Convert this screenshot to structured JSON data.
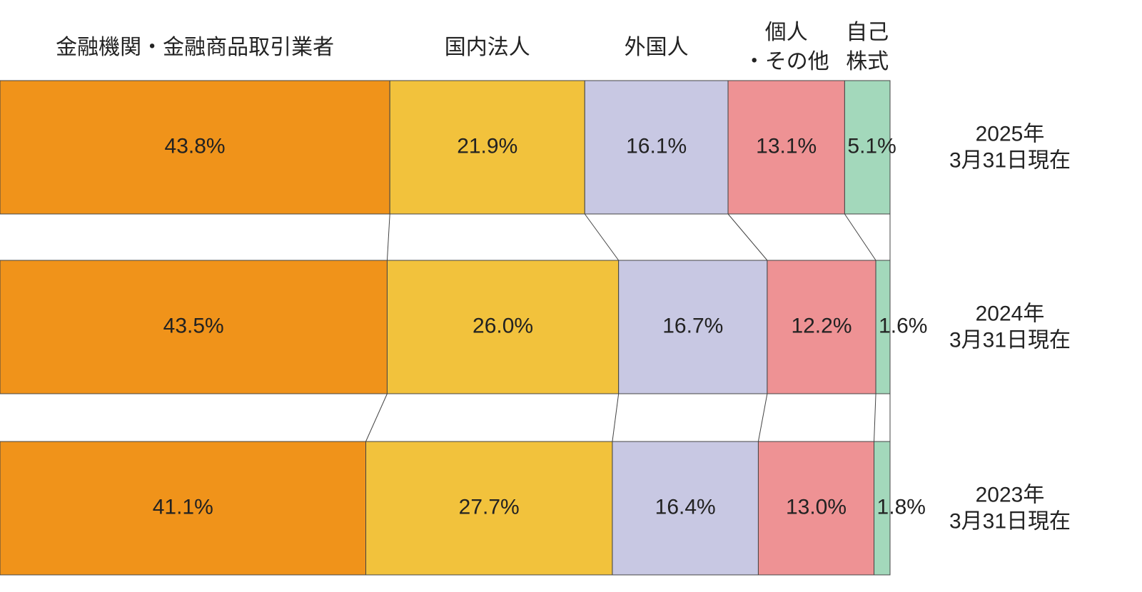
{
  "chart_data": {
    "type": "stacked-bar-horizontal-percent",
    "categories": [
      [
        "2025年",
        "3月31日現在"
      ],
      [
        "2024年",
        "3月31日現在"
      ],
      [
        "2023年",
        "3月31日現在"
      ]
    ],
    "series": [
      {
        "name": [
          "金融機関・金融商品取引業者"
        ],
        "color": "#f0931a",
        "values": [
          43.8,
          43.5,
          41.1
        ],
        "value_labels": [
          "43.8%",
          "43.5%",
          "41.1%"
        ]
      },
      {
        "name": [
          "国内法人"
        ],
        "color": "#f2c23c",
        "values": [
          21.9,
          26.0,
          27.7
        ],
        "value_labels": [
          "21.9%",
          "26.0%",
          "27.7%"
        ]
      },
      {
        "name": [
          "外国人"
        ],
        "color": "#c8c8e3",
        "values": [
          16.1,
          16.7,
          16.4
        ],
        "value_labels": [
          "16.1%",
          "16.7%",
          "16.4%"
        ]
      },
      {
        "name": [
          "個人",
          "・その他"
        ],
        "color": "#ee9294",
        "values": [
          13.1,
          12.2,
          13.0
        ],
        "value_labels": [
          "13.1%",
          "12.2%",
          "13.0%"
        ]
      },
      {
        "name": [
          "自己",
          "株式"
        ],
        "color": "#a3d8bb",
        "values": [
          5.1,
          1.6,
          1.8
        ],
        "value_labels": [
          "5.1%",
          "1.6%",
          "1.8%"
        ]
      }
    ]
  }
}
